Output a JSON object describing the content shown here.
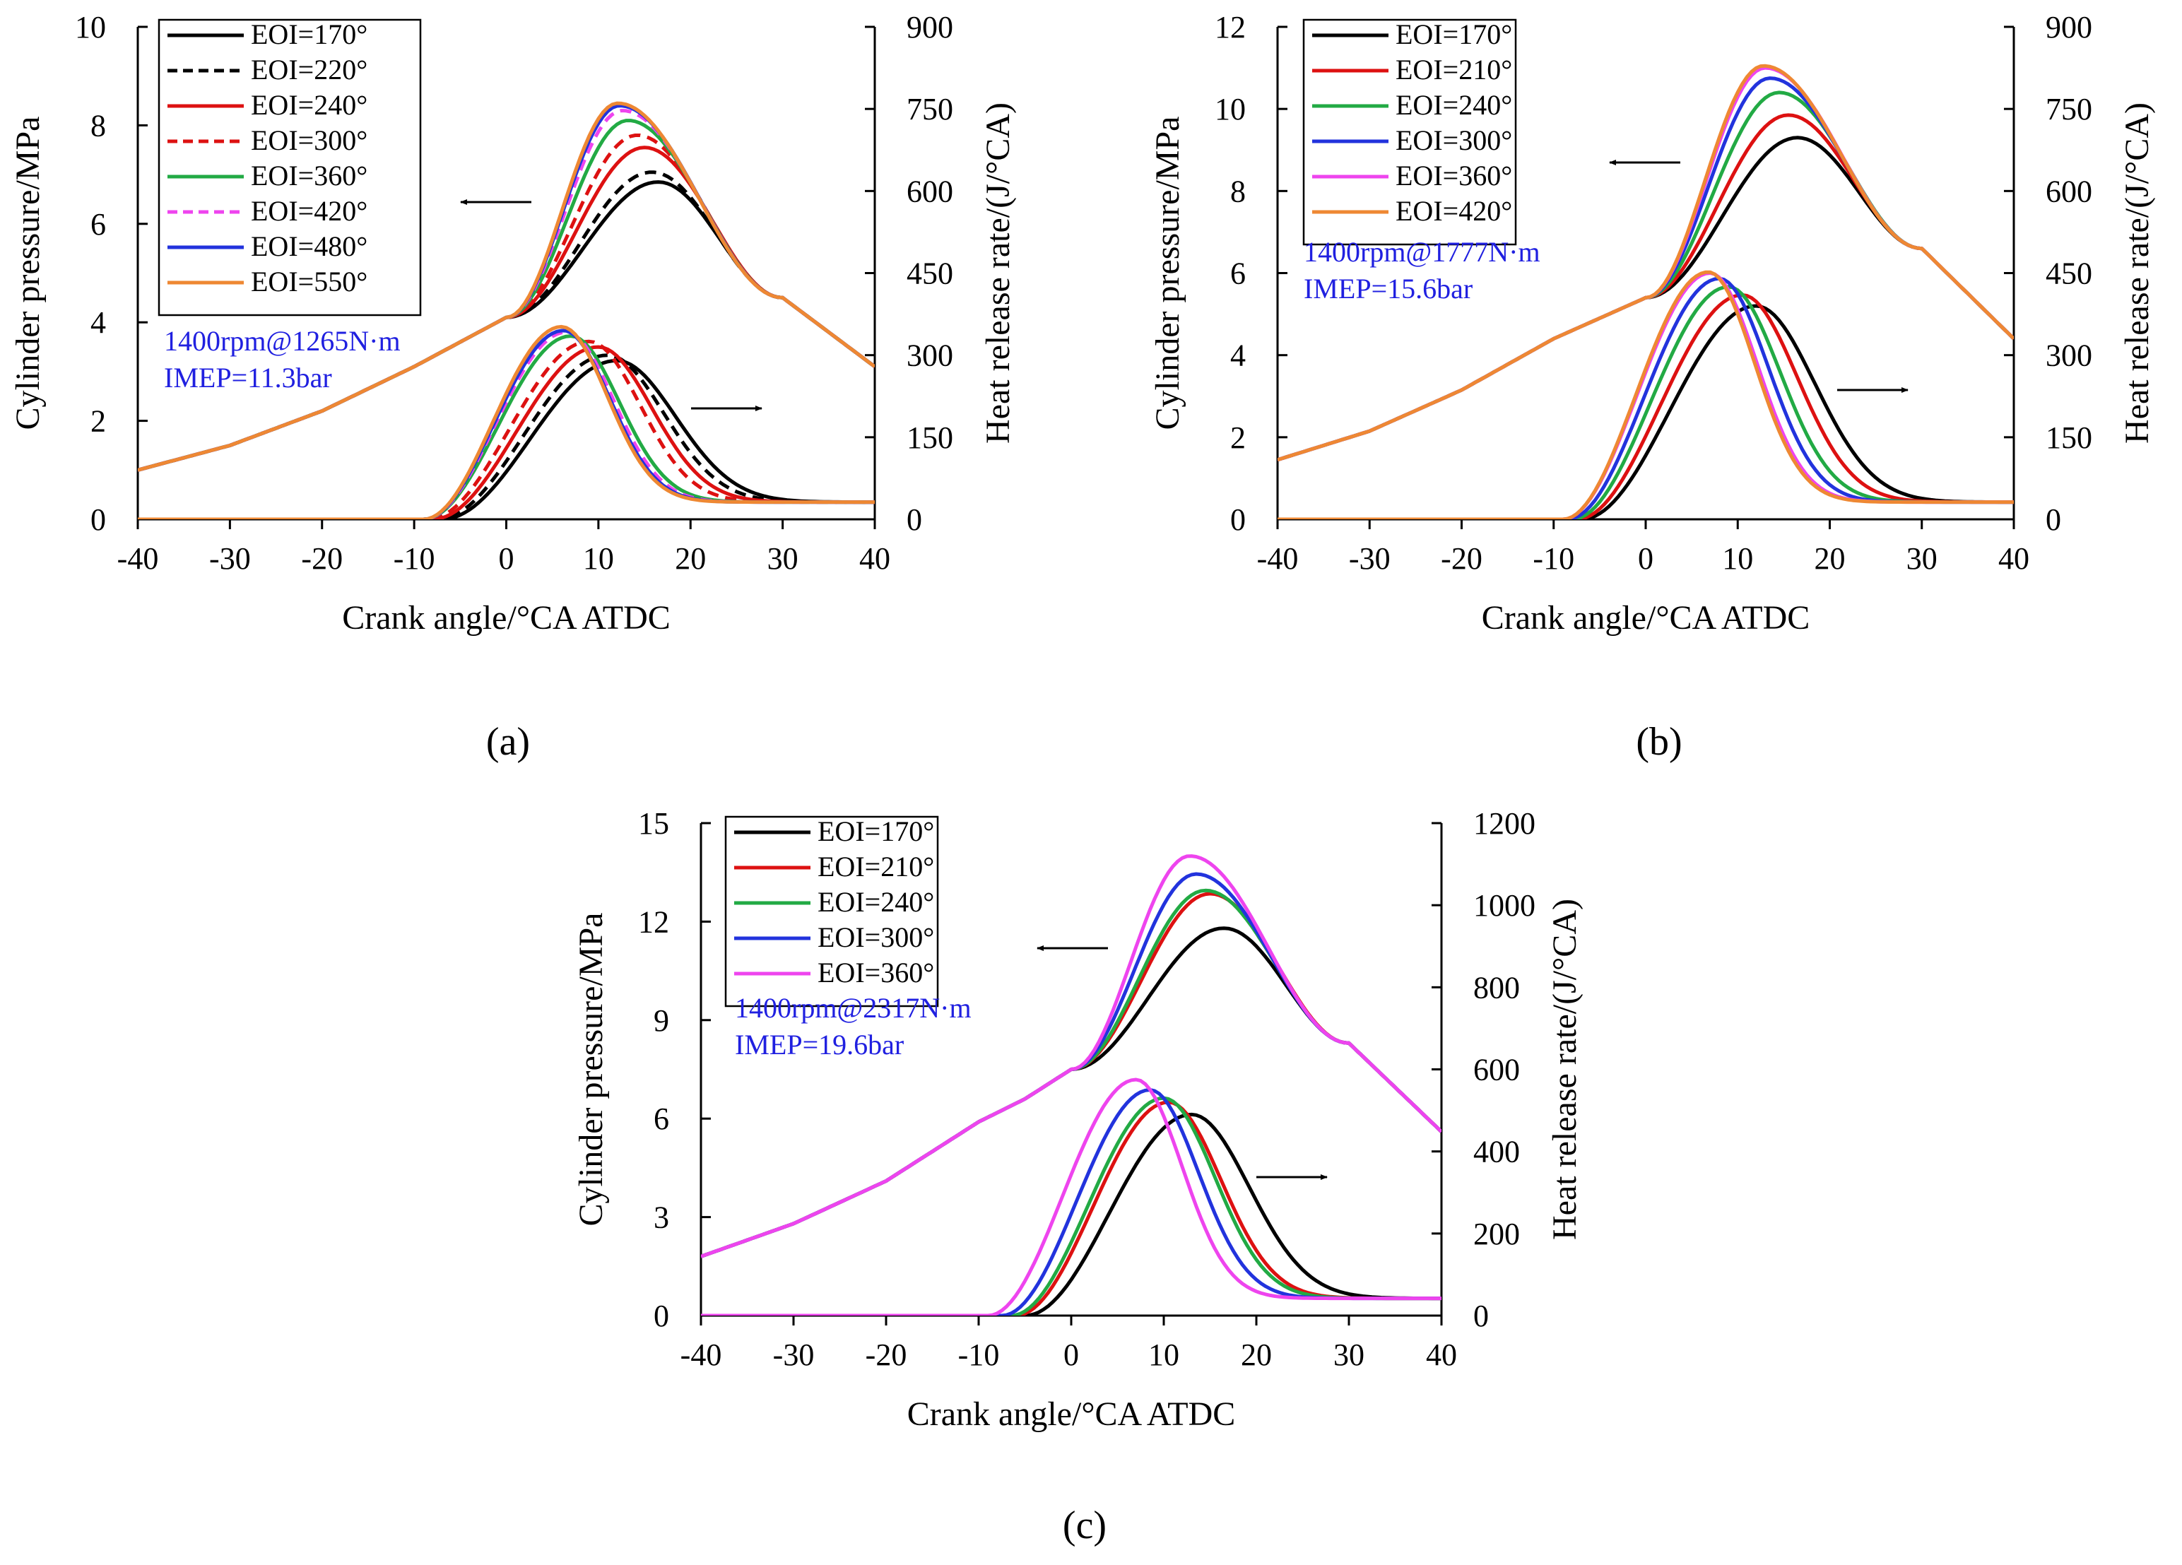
{
  "chart_data": [
    {
      "type": "line",
      "panel": "a",
      "panel_label": "(a)",
      "x": {
        "label": "Crank angle/°CA ATDC",
        "range": [
          -40,
          40
        ],
        "ticks": [
          -40,
          -30,
          -20,
          -10,
          0,
          10,
          20,
          30,
          40
        ]
      },
      "y_left": {
        "label": "Cylinder pressure/MPa",
        "range": [
          0,
          10
        ],
        "ticks": [
          0,
          2,
          4,
          6,
          8,
          10
        ]
      },
      "y_right": {
        "label": "Heat release rate/(J/°CA)",
        "range": [
          0,
          900
        ],
        "ticks": [
          0,
          150,
          300,
          450,
          600,
          750,
          900
        ]
      },
      "annotation": [
        "1400rpm@1265N·m",
        "IMEP=11.3bar"
      ],
      "legend_position": "top-left",
      "pressure_base": {
        "x": [
          -40,
          -30,
          -20,
          -10,
          -5,
          0
        ],
        "y": [
          1.0,
          1.5,
          2.2,
          3.1,
          3.6,
          4.1
        ]
      },
      "pressure_end": {
        "x": [
          30,
          40
        ],
        "y": [
          4.5,
          3.1
        ]
      },
      "series": [
        {
          "name": "EOI=170°",
          "color": "#000000",
          "dash": false,
          "p_peak": [
            16.5,
            6.85
          ],
          "h_soc": -7,
          "h_peak": [
            12,
            290
          ],
          "h_width": 9.0
        },
        {
          "name": "EOI=220°",
          "color": "#000000",
          "dash": true,
          "p_peak": [
            15.8,
            7.05
          ],
          "h_soc": -7.5,
          "h_peak": [
            11,
            300
          ],
          "h_width": 8.6
        },
        {
          "name": "EOI=240°",
          "color": "#dd1111",
          "dash": false,
          "p_peak": [
            15.0,
            7.55
          ],
          "h_soc": -8,
          "h_peak": [
            10,
            315
          ],
          "h_width": 8.2
        },
        {
          "name": "EOI=300°",
          "color": "#dd1111",
          "dash": true,
          "p_peak": [
            14.2,
            7.8
          ],
          "h_soc": -8.5,
          "h_peak": [
            9,
            325
          ],
          "h_width": 7.8
        },
        {
          "name": "EOI=360°",
          "color": "#22aa44",
          "dash": false,
          "p_peak": [
            13.2,
            8.1
          ],
          "h_soc": -9,
          "h_peak": [
            7,
            335
          ],
          "h_width": 7.4
        },
        {
          "name": "EOI=420°",
          "color": "#ee44ee",
          "dash": true,
          "p_peak": [
            12.6,
            8.3
          ],
          "h_soc": -9,
          "h_peak": [
            6.5,
            342
          ],
          "h_width": 7.2
        },
        {
          "name": "EOI=480°",
          "color": "#2233dd",
          "dash": false,
          "p_peak": [
            12.3,
            8.4
          ],
          "h_soc": -9,
          "h_peak": [
            6.2,
            345
          ],
          "h_width": 7.1
        },
        {
          "name": "EOI=550°",
          "color": "#ee8833",
          "dash": false,
          "p_peak": [
            12.1,
            8.45
          ],
          "h_soc": -9,
          "h_peak": [
            6.0,
            352
          ],
          "h_width": 7.0
        }
      ]
    },
    {
      "type": "line",
      "panel": "b",
      "panel_label": "(b)",
      "x": {
        "label": "Crank angle/°CA ATDC",
        "range": [
          -40,
          40
        ],
        "ticks": [
          -40,
          -30,
          -20,
          -10,
          0,
          10,
          20,
          30,
          40
        ]
      },
      "y_left": {
        "label": "Cylinder pressure/MPa",
        "range": [
          0,
          12
        ],
        "ticks": [
          0,
          2,
          4,
          6,
          8,
          10,
          12
        ]
      },
      "y_right": {
        "label": "Heat release rate/(J/°CA)",
        "range": [
          0,
          900
        ],
        "ticks": [
          0,
          150,
          300,
          450,
          600,
          750,
          900
        ]
      },
      "annotation": [
        "1400rpm@1777N·m",
        "IMEP=15.6bar"
      ],
      "legend_position": "top-left",
      "pressure_base": {
        "x": [
          -40,
          -30,
          -20,
          -10,
          -5,
          0
        ],
        "y": [
          1.45,
          2.15,
          3.15,
          4.4,
          4.9,
          5.4
        ]
      },
      "pressure_end": {
        "x": [
          30,
          40
        ],
        "y": [
          6.6,
          4.4
        ]
      },
      "series": [
        {
          "name": "EOI=170°",
          "color": "#000000",
          "dash": false,
          "p_peak": [
            16.5,
            9.3
          ],
          "h_soc": -7,
          "h_peak": [
            12,
            390
          ],
          "h_width": 9.0
        },
        {
          "name": "EOI=210°",
          "color": "#dd1111",
          "dash": false,
          "p_peak": [
            15.5,
            9.85
          ],
          "h_soc": -7.5,
          "h_peak": [
            10.5,
            410
          ],
          "h_width": 8.4
        },
        {
          "name": "EOI=240°",
          "color": "#22aa44",
          "dash": false,
          "p_peak": [
            14.5,
            10.4
          ],
          "h_soc": -8,
          "h_peak": [
            9,
            425
          ],
          "h_width": 7.9
        },
        {
          "name": "EOI=300°",
          "color": "#2233dd",
          "dash": false,
          "p_peak": [
            13.5,
            10.75
          ],
          "h_soc": -8.5,
          "h_peak": [
            8,
            440
          ],
          "h_width": 7.5
        },
        {
          "name": "EOI=360°",
          "color": "#ee44ee",
          "dash": false,
          "p_peak": [
            13.0,
            11.0
          ],
          "h_soc": -9,
          "h_peak": [
            7,
            450
          ],
          "h_width": 7.2
        },
        {
          "name": "EOI=420°",
          "color": "#ee8833",
          "dash": false,
          "p_peak": [
            12.8,
            11.05
          ],
          "h_soc": -9,
          "h_peak": [
            6.8,
            452
          ],
          "h_width": 7.1
        }
      ]
    },
    {
      "type": "line",
      "panel": "c",
      "panel_label": "(c)",
      "x": {
        "label": "Crank angle/°CA ATDC",
        "range": [
          -40,
          40
        ],
        "ticks": [
          -40,
          -30,
          -20,
          -10,
          0,
          10,
          20,
          30,
          40
        ]
      },
      "y_left": {
        "label": "Cylinder pressure/MPa",
        "range": [
          0,
          15
        ],
        "ticks": [
          0,
          3,
          6,
          9,
          12,
          15
        ]
      },
      "y_right": {
        "label": "Heat release rate/(J/°CA)",
        "range": [
          0,
          1200
        ],
        "ticks": [
          0,
          200,
          400,
          600,
          800,
          1000,
          1200
        ]
      },
      "annotation": [
        "1400rpm@2317N·m",
        "IMEP=19.6bar"
      ],
      "legend_position": "top-left",
      "pressure_base": {
        "x": [
          -40,
          -30,
          -20,
          -10,
          -5,
          0
        ],
        "y": [
          1.8,
          2.8,
          4.1,
          5.9,
          6.6,
          7.5
        ]
      },
      "pressure_end": {
        "x": [
          30,
          40
        ],
        "y": [
          8.3,
          5.6
        ]
      },
      "series": [
        {
          "name": "EOI=170°",
          "color": "#000000",
          "dash": false,
          "p_peak": [
            16.5,
            11.8
          ],
          "h_soc": -5,
          "h_peak": [
            13,
            490
          ],
          "h_width": 8.8
        },
        {
          "name": "EOI=210°",
          "color": "#dd1111",
          "dash": false,
          "p_peak": [
            15.0,
            12.85
          ],
          "h_soc": -6,
          "h_peak": [
            10.5,
            520
          ],
          "h_width": 8.0
        },
        {
          "name": "EOI=240°",
          "color": "#22aa44",
          "dash": false,
          "p_peak": [
            14.5,
            12.95
          ],
          "h_soc": -6.5,
          "h_peak": [
            10,
            530
          ],
          "h_width": 7.8
        },
        {
          "name": "EOI=300°",
          "color": "#2233dd",
          "dash": false,
          "p_peak": [
            13.5,
            13.45
          ],
          "h_soc": -7.5,
          "h_peak": [
            8.5,
            550
          ],
          "h_width": 7.4
        },
        {
          "name": "EOI=360°",
          "color": "#ee44ee",
          "dash": false,
          "p_peak": [
            12.8,
            14.0
          ],
          "h_soc": -9,
          "h_peak": [
            7,
            575
          ],
          "h_width": 7.0
        }
      ]
    }
  ]
}
